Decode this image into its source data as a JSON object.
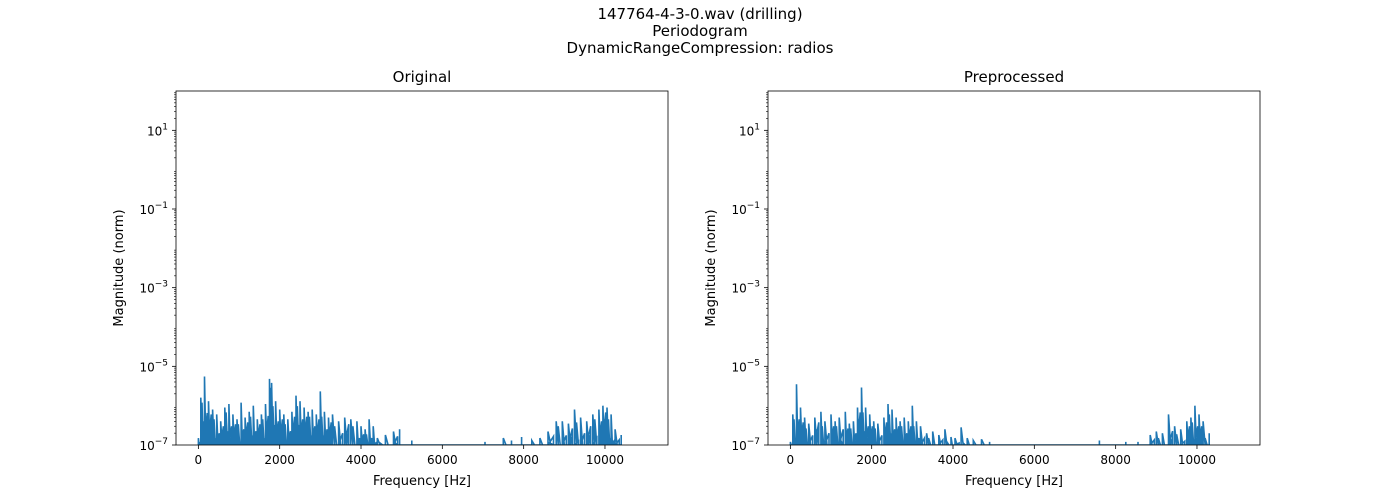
{
  "figure": {
    "title_lines": [
      "147764-4-3-0.wav (drilling)",
      "Periodogram",
      "DynamicRangeCompression: radios"
    ]
  },
  "chart_data": [
    {
      "type": "line",
      "title": "Original",
      "xlabel": "Frequency [Hz]",
      "ylabel": "Magnitude (norm)",
      "xlim": [
        -550,
        11550
      ],
      "ylim": [
        1e-07,
        100
      ],
      "yscale": "log",
      "xticks": [
        0,
        2000,
        4000,
        6000,
        8000,
        10000
      ],
      "xtick_labels": [
        "0",
        "2000",
        "4000",
        "6000",
        "8000",
        "10000"
      ],
      "yticks": [
        1e-07,
        1e-05,
        0.001,
        0.1,
        10
      ],
      "ytick_labels": [
        [
          "10",
          "−7"
        ],
        [
          "10",
          "−5"
        ],
        [
          "10",
          "−3"
        ],
        [
          "10",
          "−1"
        ],
        [
          "10",
          "1"
        ]
      ],
      "grid": false,
      "color": "#1f77b4",
      "peaks": [
        [
          0,
          1.5e-07
        ],
        [
          60,
          1.6e-06
        ],
        [
          150,
          5.5e-06
        ],
        [
          250,
          1.3e-06
        ],
        [
          350,
          8e-07
        ],
        [
          450,
          6e-07
        ],
        [
          550,
          4e-07
        ],
        [
          650,
          9e-07
        ],
        [
          750,
          1.1e-06
        ],
        [
          850,
          6e-07
        ],
        [
          950,
          4.5e-07
        ],
        [
          1050,
          1.2e-06
        ],
        [
          1150,
          5e-07
        ],
        [
          1250,
          7e-07
        ],
        [
          1350,
          1e-06
        ],
        [
          1450,
          4.5e-07
        ],
        [
          1550,
          6e-07
        ],
        [
          1650,
          1.1e-06
        ],
        [
          1750,
          4.8e-06
        ],
        [
          1800,
          3.8e-06
        ],
        [
          1900,
          1.3e-06
        ],
        [
          2000,
          8e-07
        ],
        [
          2100,
          6e-07
        ],
        [
          2200,
          4.5e-07
        ],
        [
          2300,
          7e-07
        ],
        [
          2400,
          1.8e-06
        ],
        [
          2500,
          1.3e-06
        ],
        [
          2600,
          9e-07
        ],
        [
          2700,
          7e-07
        ],
        [
          2800,
          8e-07
        ],
        [
          2900,
          6e-07
        ],
        [
          3000,
          2.3e-06
        ],
        [
          3100,
          7e-07
        ],
        [
          3200,
          5e-07
        ],
        [
          3300,
          6e-07
        ],
        [
          3450,
          4e-07
        ],
        [
          3600,
          5e-07
        ],
        [
          3750,
          4.5e-07
        ],
        [
          3900,
          4e-07
        ],
        [
          4000,
          3e-07
        ],
        [
          4100,
          2.5e-07
        ],
        [
          4200,
          4.5e-07
        ],
        [
          4300,
          3e-07
        ],
        [
          4400,
          1.5e-07
        ],
        [
          4600,
          1.8e-07
        ],
        [
          4800,
          2.2e-07
        ],
        [
          4950,
          2.5e-07
        ],
        [
          5250,
          1.3e-07
        ],
        [
          7050,
          1.2e-07
        ],
        [
          7500,
          1.5e-07
        ],
        [
          7700,
          1.3e-07
        ],
        [
          7950,
          1.6e-07
        ],
        [
          8200,
          1.3e-07
        ],
        [
          8400,
          1.5e-07
        ],
        [
          8600,
          2.2e-07
        ],
        [
          8800,
          4e-07
        ],
        [
          8950,
          4e-07
        ],
        [
          9100,
          3.5e-07
        ],
        [
          9250,
          8e-07
        ],
        [
          9400,
          5e-07
        ],
        [
          9550,
          4e-07
        ],
        [
          9700,
          6e-07
        ],
        [
          9850,
          8e-07
        ],
        [
          9950,
          1e-06
        ],
        [
          10050,
          9e-07
        ],
        [
          10150,
          6e-07
        ],
        [
          10250,
          2.5e-07
        ],
        [
          10400,
          1.8e-07
        ]
      ]
    },
    {
      "type": "line",
      "title": "Preprocessed",
      "xlabel": "Frequency [Hz]",
      "ylabel": "Magnitude (norm)",
      "xlim": [
        -550,
        11550
      ],
      "ylim": [
        1e-07,
        100
      ],
      "yscale": "log",
      "xticks": [
        0,
        2000,
        4000,
        6000,
        8000,
        10000
      ],
      "xtick_labels": [
        "0",
        "2000",
        "4000",
        "6000",
        "8000",
        "10000"
      ],
      "yticks": [
        1e-07,
        1e-05,
        0.001,
        0.1,
        10
      ],
      "ytick_labels": [
        [
          "10",
          "−7"
        ],
        [
          "10",
          "−5"
        ],
        [
          "10",
          "−3"
        ],
        [
          "10",
          "−1"
        ],
        [
          "10",
          "1"
        ]
      ],
      "grid": false,
      "color": "#1f77b4",
      "peaks": [
        [
          0,
          1.2e-07
        ],
        [
          60,
          6e-07
        ],
        [
          150,
          3.5e-06
        ],
        [
          250,
          9e-07
        ],
        [
          350,
          5e-07
        ],
        [
          450,
          3.5e-07
        ],
        [
          600,
          5e-07
        ],
        [
          750,
          7e-07
        ],
        [
          850,
          4e-07
        ],
        [
          1000,
          6e-07
        ],
        [
          1100,
          4e-07
        ],
        [
          1200,
          5e-07
        ],
        [
          1350,
          7e-07
        ],
        [
          1450,
          3.5e-07
        ],
        [
          1550,
          4e-07
        ],
        [
          1650,
          9e-07
        ],
        [
          1750,
          2.9e-06
        ],
        [
          1850,
          9e-07
        ],
        [
          1950,
          6e-07
        ],
        [
          2050,
          4e-07
        ],
        [
          2150,
          3.5e-07
        ],
        [
          2300,
          5e-07
        ],
        [
          2400,
          1.1e-06
        ],
        [
          2500,
          8e-07
        ],
        [
          2600,
          5e-07
        ],
        [
          2700,
          4e-07
        ],
        [
          2800,
          5e-07
        ],
        [
          2900,
          4e-07
        ],
        [
          3000,
          1e-06
        ],
        [
          3100,
          4e-07
        ],
        [
          3200,
          3e-07
        ],
        [
          3350,
          2e-07
        ],
        [
          3500,
          2.2e-07
        ],
        [
          3650,
          1.8e-07
        ],
        [
          3800,
          2.5e-07
        ],
        [
          3950,
          1.6e-07
        ],
        [
          4050,
          1.5e-07
        ],
        [
          4200,
          2.8e-07
        ],
        [
          4350,
          1.5e-07
        ],
        [
          4500,
          1.3e-07
        ],
        [
          4700,
          1.4e-07
        ],
        [
          4900,
          1.2e-07
        ],
        [
          7600,
          1.3e-07
        ],
        [
          8250,
          1.2e-07
        ],
        [
          8550,
          1.2e-07
        ],
        [
          8850,
          1.8e-07
        ],
        [
          9000,
          2.2e-07
        ],
        [
          9150,
          2e-07
        ],
        [
          9300,
          6e-07
        ],
        [
          9450,
          3e-07
        ],
        [
          9600,
          2.5e-07
        ],
        [
          9750,
          4e-07
        ],
        [
          9850,
          5e-07
        ],
        [
          9950,
          1e-06
        ],
        [
          10050,
          6e-07
        ],
        [
          10150,
          4e-07
        ],
        [
          10300,
          2e-07
        ]
      ]
    }
  ]
}
